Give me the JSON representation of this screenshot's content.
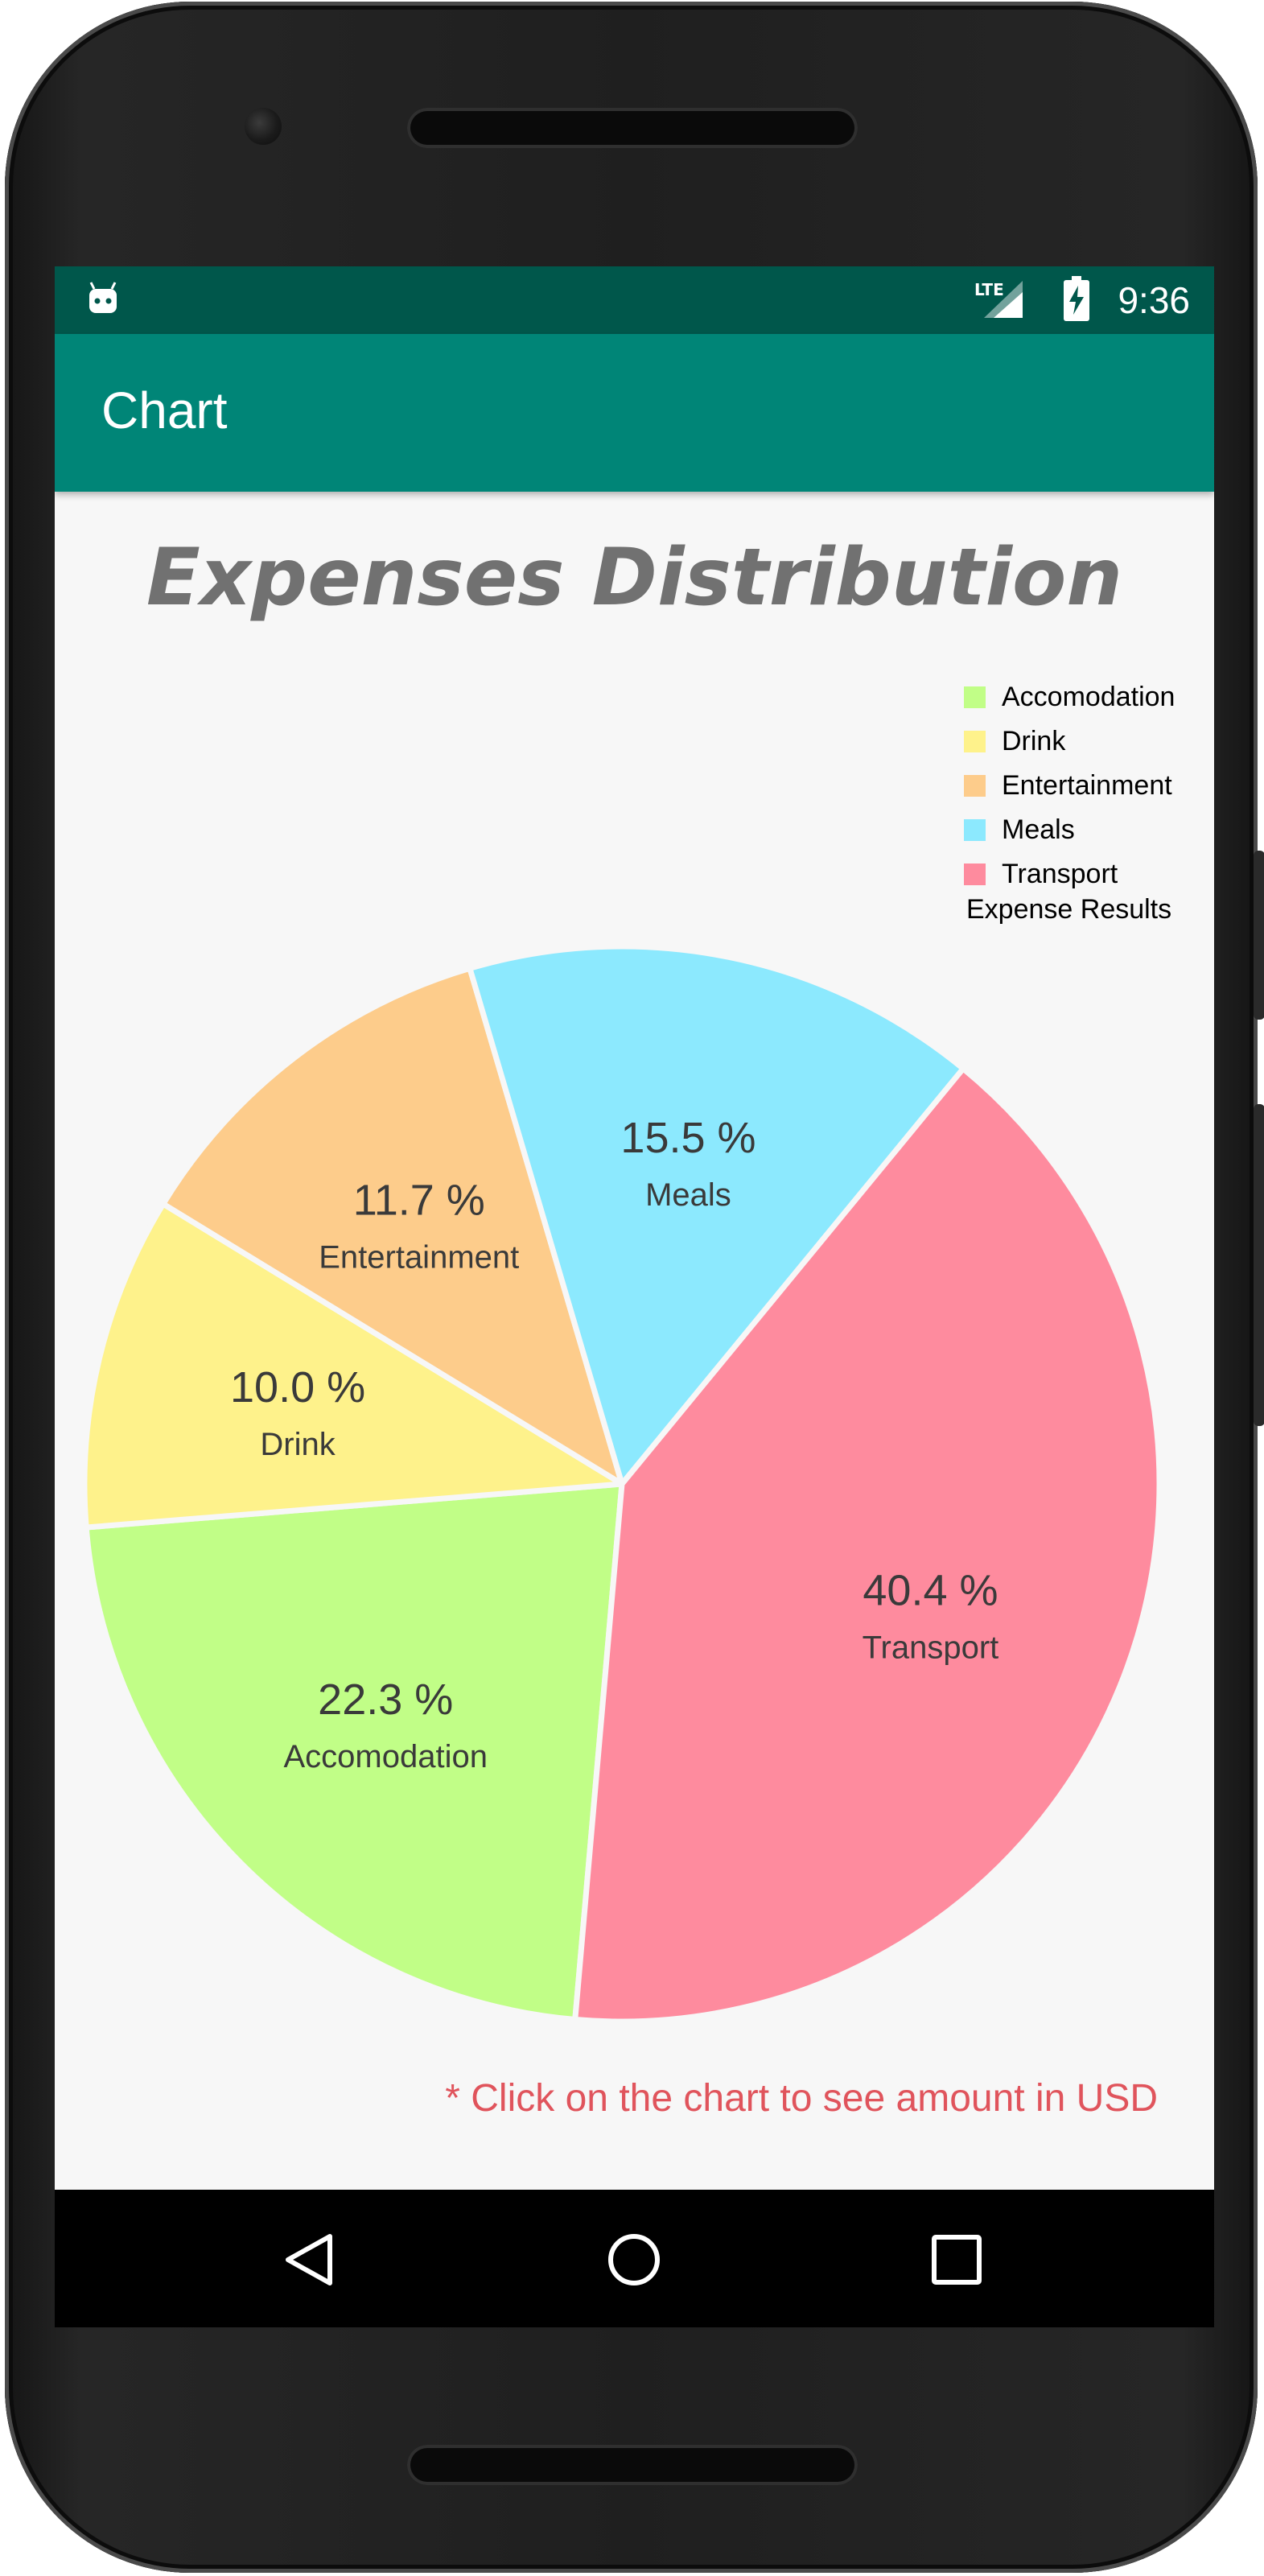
{
  "status_bar": {
    "time": "9:36",
    "network": "LTE",
    "icons": [
      "android-notification-icon",
      "lte-signal-icon",
      "battery-charging-icon"
    ]
  },
  "app_bar": {
    "title": "Chart"
  },
  "hint_text": "* Click on the chart to see amount in USD",
  "navigation": {
    "icons": [
      "back-icon",
      "home-icon",
      "recents-icon"
    ]
  },
  "colors": {
    "app_bar": "#008577",
    "status_bar": "#00574b",
    "hint": "#e0545c",
    "title": "#717171"
  },
  "chart_data": {
    "type": "pie",
    "title": "Expenses Distribution",
    "legend_position": "top-right",
    "legend_description": "Expense Results",
    "slices": [
      {
        "label": "Accomodation",
        "value": 22.3,
        "value_label": "22.3 %",
        "color": "#c1fe87"
      },
      {
        "label": "Drink",
        "value": 10.0,
        "value_label": "10.0 %",
        "color": "#fef28b"
      },
      {
        "label": "Entertainment",
        "value": 11.7,
        "value_label": "11.7 %",
        "color": "#fdcc8b"
      },
      {
        "label": "Meals",
        "value": 15.5,
        "value_label": "15.5 %",
        "color": "#8ce9fe"
      },
      {
        "label": "Transport",
        "value": 40.4,
        "value_label": "40.4 %",
        "color": "#fe8b9e"
      }
    ]
  }
}
